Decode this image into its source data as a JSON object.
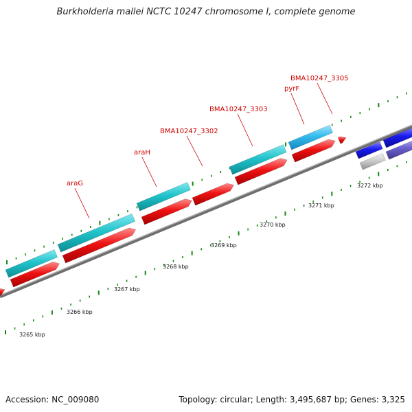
{
  "title": "Burkholderia mallei NCTC 10247 chromosome I, complete genome",
  "accession": "Accession: NC_009080",
  "summary": "Topology: circular; Length: 3,495,687 bp; Genes: 3,325",
  "scale_labels": [
    "3265 kbp",
    "3266 kbp",
    "3267 kbp",
    "3268 kbp",
    "3269 kbp",
    "3270 kbp",
    "3271 kbp",
    "3272 kbp"
  ],
  "gene_labels": [
    "araG",
    "araH",
    "BMA10247_3302",
    "BMA10247_3303",
    "pyrF",
    "BMA10247_3305"
  ],
  "colors": {
    "cds_forward": "#22c4cc",
    "cds_highlight": "#33bbee",
    "gene": "#ee1111",
    "other_cds": "#1a1aee",
    "other_cds_alt": "#6a5fcc",
    "pseudo": "#c8c8c8",
    "backbone": "#888888",
    "tick": "#118811",
    "label": "#cc0000"
  }
}
